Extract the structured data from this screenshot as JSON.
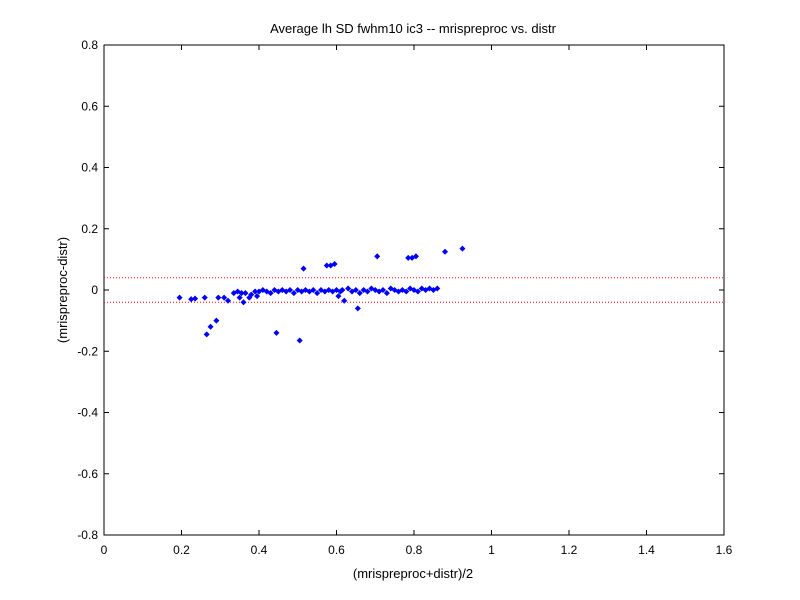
{
  "chart_data": {
    "type": "scatter",
    "title": "Average lh SD fwhm10 ic3 -- mrispreproc vs. distr",
    "xlabel": "(mrispreproc+distr)/2",
    "ylabel": "(mrispreproc-distr)",
    "xlim": [
      0,
      1.6
    ],
    "ylim": [
      -0.8,
      0.8
    ],
    "xticks": [
      0,
      0.2,
      0.4,
      0.6,
      0.8,
      1,
      1.2,
      1.4,
      1.6
    ],
    "xtick_labels": [
      "0",
      "0.2",
      "0.4",
      "0.6",
      "0.8",
      "1",
      "1.2",
      "1.4",
      "1.6"
    ],
    "yticks": [
      -0.8,
      -0.6,
      -0.4,
      -0.2,
      0,
      0.2,
      0.4,
      0.6,
      0.8
    ],
    "ytick_labels": [
      "-0.8",
      "-0.6",
      "-0.4",
      "-0.2",
      "0",
      "0.2",
      "0.4",
      "0.6",
      "0.8"
    ],
    "grid": false,
    "marker_color": "#0000ff",
    "reference_lines": {
      "color": "#ff0000",
      "style": "dotted",
      "y": [
        0.04,
        -0.04
      ]
    },
    "series": [
      {
        "points": [
          [
            0.195,
            -0.025
          ],
          [
            0.225,
            -0.03
          ],
          [
            0.235,
            -0.028
          ],
          [
            0.26,
            -0.025
          ],
          [
            0.265,
            -0.145
          ],
          [
            0.275,
            -0.12
          ],
          [
            0.29,
            -0.1
          ],
          [
            0.295,
            -0.025
          ],
          [
            0.31,
            -0.025
          ],
          [
            0.32,
            -0.035
          ],
          [
            0.335,
            -0.01
          ],
          [
            0.345,
            -0.005
          ],
          [
            0.35,
            -0.025
          ],
          [
            0.355,
            -0.01
          ],
          [
            0.36,
            -0.04
          ],
          [
            0.365,
            -0.01
          ],
          [
            0.375,
            -0.025
          ],
          [
            0.38,
            -0.015
          ],
          [
            0.39,
            -0.005
          ],
          [
            0.395,
            -0.02
          ],
          [
            0.4,
            -0.005
          ],
          [
            0.41,
            0.0
          ],
          [
            0.42,
            -0.005
          ],
          [
            0.43,
            -0.01
          ],
          [
            0.44,
            0.0
          ],
          [
            0.445,
            -0.14
          ],
          [
            0.45,
            -0.005
          ],
          [
            0.46,
            0.0
          ],
          [
            0.47,
            -0.005
          ],
          [
            0.48,
            0.0
          ],
          [
            0.49,
            -0.01
          ],
          [
            0.5,
            0.0
          ],
          [
            0.505,
            -0.165
          ],
          [
            0.51,
            -0.005
          ],
          [
            0.515,
            0.07
          ],
          [
            0.52,
            0.0
          ],
          [
            0.53,
            -0.005
          ],
          [
            0.54,
            0.0
          ],
          [
            0.55,
            -0.01
          ],
          [
            0.56,
            0.0
          ],
          [
            0.57,
            -0.005
          ],
          [
            0.575,
            0.08
          ],
          [
            0.58,
            0.0
          ],
          [
            0.585,
            0.08
          ],
          [
            0.59,
            -0.005
          ],
          [
            0.595,
            0.085
          ],
          [
            0.6,
            0.0
          ],
          [
            0.605,
            -0.02
          ],
          [
            0.61,
            -0.005
          ],
          [
            0.615,
            0.0
          ],
          [
            0.62,
            -0.035
          ],
          [
            0.63,
            0.005
          ],
          [
            0.64,
            -0.005
          ],
          [
            0.65,
            0.0
          ],
          [
            0.655,
            -0.06
          ],
          [
            0.66,
            -0.01
          ],
          [
            0.67,
            0.0
          ],
          [
            0.68,
            -0.005
          ],
          [
            0.69,
            0.005
          ],
          [
            0.7,
            0.0
          ],
          [
            0.705,
            0.11
          ],
          [
            0.71,
            -0.005
          ],
          [
            0.72,
            0.0
          ],
          [
            0.73,
            -0.01
          ],
          [
            0.74,
            0.005
          ],
          [
            0.75,
            0.0
          ],
          [
            0.76,
            -0.005
          ],
          [
            0.77,
            0.0
          ],
          [
            0.78,
            -0.005
          ],
          [
            0.785,
            0.105
          ],
          [
            0.79,
            0.005
          ],
          [
            0.795,
            0.105
          ],
          [
            0.8,
            0.0
          ],
          [
            0.805,
            0.11
          ],
          [
            0.81,
            -0.005
          ],
          [
            0.82,
            0.005
          ],
          [
            0.83,
            0.0
          ],
          [
            0.84,
            0.005
          ],
          [
            0.85,
            0.0
          ],
          [
            0.86,
            0.005
          ],
          [
            0.88,
            0.125
          ],
          [
            0.925,
            0.135
          ]
        ]
      }
    ]
  }
}
